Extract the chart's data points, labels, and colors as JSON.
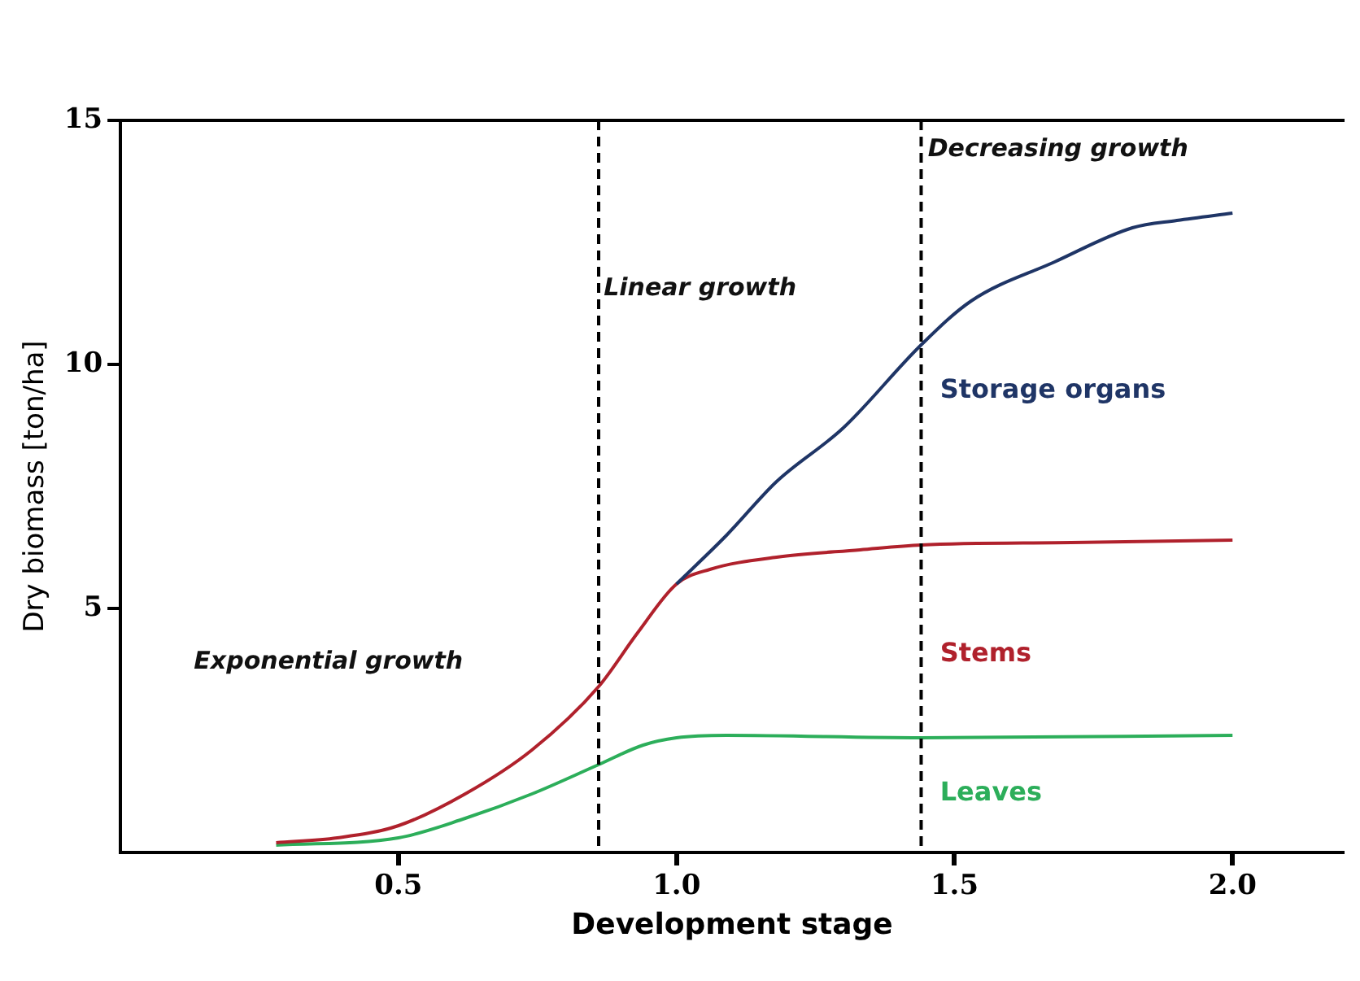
{
  "chart_data": {
    "type": "line",
    "xlabel": "Development stage",
    "ylabel": "Dry biomass [ton/ha]",
    "xlim": [
      0,
      2.2
    ],
    "xticks": [
      {
        "value": 0.5,
        "label": "0.5"
      },
      {
        "value": 1,
        "label": "1.0"
      },
      {
        "value": 1.5,
        "label": "1.5"
      },
      {
        "value": 2,
        "label": "2.0"
      }
    ],
    "ylim": [
      0,
      15
    ],
    "yticks": [
      5,
      10,
      15
    ],
    "grid": false,
    "legend": false,
    "marker": "none",
    "line_style": "solid",
    "series": [
      {
        "name": "Storage organs",
        "color": "#1f3566",
        "x": [
          1.0,
          1.09,
          1.18,
          1.3,
          1.44,
          1.53,
          1.68,
          1.82,
          1.9,
          2.0
        ],
        "values": [
          5.5,
          6.5,
          7.6,
          8.7,
          10.4,
          11.3,
          12.1,
          12.8,
          12.95,
          13.1
        ]
      },
      {
        "name": "Stems",
        "color": "#b0212c",
        "x": [
          0.28,
          0.39,
          0.5,
          0.62,
          0.74,
          0.86,
          0.93,
          1.0,
          1.06,
          1.18,
          1.33,
          1.44,
          1.71,
          2.0
        ],
        "values": [
          0.2,
          0.3,
          0.55,
          1.2,
          2.1,
          3.4,
          4.5,
          5.5,
          5.8,
          6.05,
          6.2,
          6.3,
          6.35,
          6.4
        ]
      },
      {
        "name": "Leaves",
        "color": "#2cae5a",
        "x": [
          0.28,
          0.5,
          0.62,
          0.74,
          0.86,
          0.94,
          1.0,
          1.09,
          1.44,
          2.0
        ],
        "values": [
          0.15,
          0.3,
          0.7,
          1.2,
          1.8,
          2.2,
          2.35,
          2.4,
          2.35,
          2.4
        ]
      }
    ],
    "ref_lines": [
      {
        "axis": "x",
        "value": 0.86,
        "color": "#000000",
        "line_style": "dashed"
      },
      {
        "axis": "x",
        "value": 1.44,
        "color": "#000000",
        "line_style": "dashed"
      }
    ],
    "annotations": [
      "Exponential growth",
      "Linear growth",
      "Decreasing growth"
    ]
  }
}
